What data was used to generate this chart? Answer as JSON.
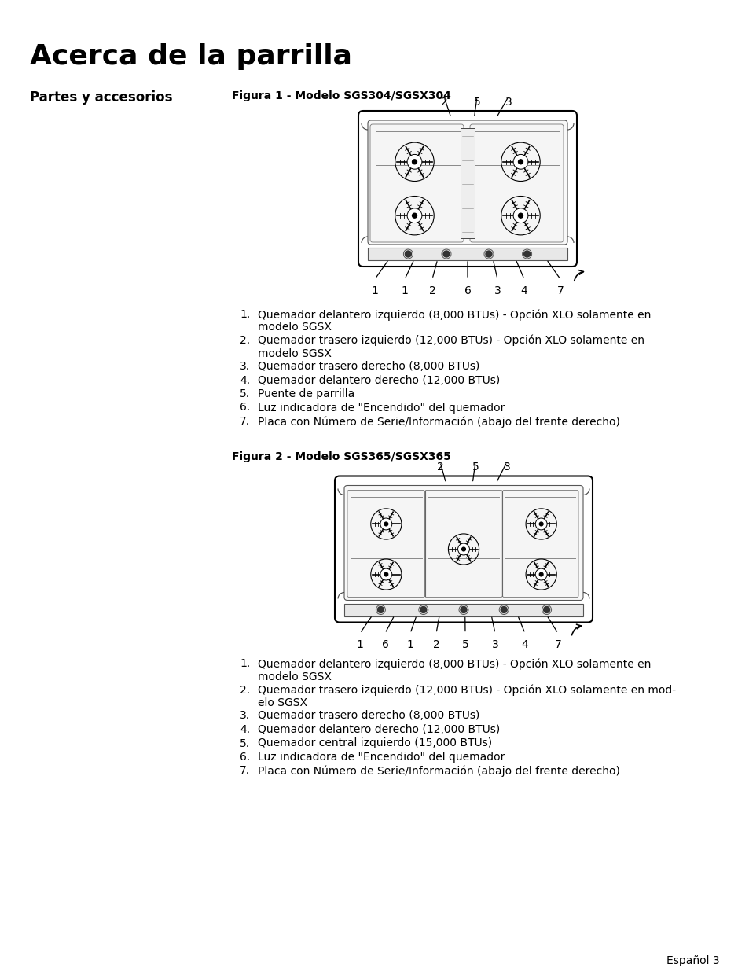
{
  "title": "Acerca de la parrilla",
  "section_title": "Partes y accesorios",
  "fig1_title": "Figura 1 - Modelo SGS304/SGSX304",
  "fig2_title": "Figura 2 - Modelo SGS365/SGSX365",
  "fig1_items": [
    [
      "Quemador delantero izquierdo (8,000 BTUs) - Opción XLO solamente en",
      "modelo SGSX"
    ],
    [
      "Quemador trasero izquierdo (12,000 BTUs) - Opción XLO solamente en",
      "modelo SGSX"
    ],
    [
      "Quemador trasero derecho (8,000 BTUs)"
    ],
    [
      "Quemador delantero derecho (12,000 BTUs)"
    ],
    [
      "Puente de parrilla"
    ],
    [
      "Luz indicadora de \"Encendido\" del quemador"
    ],
    [
      "Placa con Número de Serie/Información (abajo del frente derecho)"
    ]
  ],
  "fig2_items": [
    [
      "Quemador delantero izquierdo (8,000 BTUs) - Opción XLO solamente en",
      "modelo SGSX"
    ],
    [
      "Quemador trasero izquierdo (12,000 BTUs) - Opción XLO solamente en mod-",
      "elo SGSX"
    ],
    [
      "Quemador trasero derecho (8,000 BTUs)"
    ],
    [
      "Quemador delantero derecho (12,000 BTUs)"
    ],
    [
      "Quemador central izquierdo (15,000 BTUs)"
    ],
    [
      "Luz indicadora de \"Encendido\" del quemador"
    ],
    [
      "Placa con Número de Serie/Información (abajo del frente derecho)"
    ]
  ],
  "footer": "Español 3",
  "bg_color": "#ffffff",
  "text_color": "#000000"
}
